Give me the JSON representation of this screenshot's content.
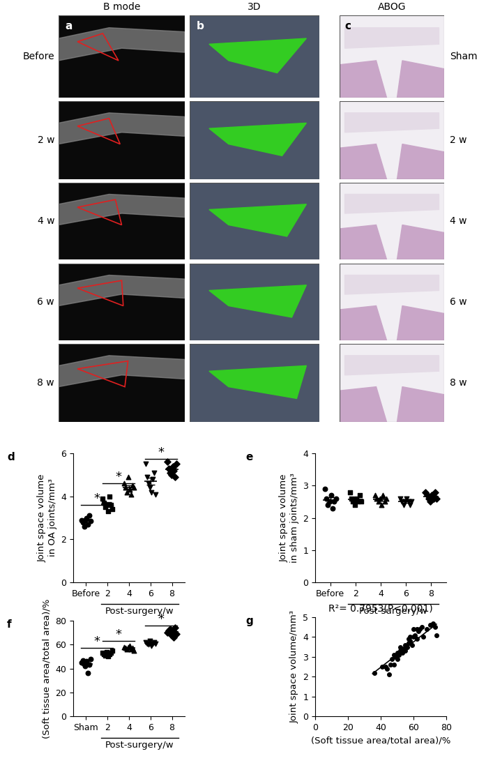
{
  "image_panels": {
    "column_titles": [
      "B mode",
      "3D",
      "ABOG"
    ],
    "row_labels": [
      "Before",
      "2 w",
      "4 w",
      "6 w",
      "8 w"
    ],
    "right_labels": [
      "Sham",
      "2 w",
      "4 w",
      "6 w",
      "8 w"
    ],
    "panel_letters": [
      "a",
      "b",
      "c"
    ]
  },
  "chart_data": [
    {
      "type": "strip",
      "panel": "d",
      "color": "#000000",
      "categories": [
        "Before",
        "2",
        "4",
        "6",
        "8"
      ],
      "y_label": "Joint space volume\nin OA joints/mm³",
      "group_label": {
        "text": "Post-surgery/w",
        "from": "2",
        "to": "8"
      },
      "ylim": [
        0,
        6
      ],
      "yticks": [
        0,
        2,
        4,
        6
      ],
      "groups": [
        {
          "category": "Before",
          "marker": "circle",
          "values": [
            2.9,
            2.8,
            2.6,
            2.9,
            3.0,
            2.7,
            3.1,
            2.85
          ],
          "mean": 2.86,
          "sem": 0.06
        },
        {
          "category": "2",
          "marker": "square",
          "values": [
            3.9,
            3.7,
            3.5,
            3.6,
            3.3,
            4.0,
            3.6,
            3.4
          ],
          "mean": 3.63,
          "sem": 0.09
        },
        {
          "category": "4",
          "marker": "triangle_up",
          "values": [
            4.6,
            4.4,
            4.2,
            4.9,
            4.3,
            4.1,
            4.5,
            4.4
          ],
          "mean": 4.42,
          "sem": 0.09
        },
        {
          "category": "6",
          "marker": "triangle_down",
          "values": [
            5.5,
            4.9,
            4.6,
            4.4,
            4.2,
            4.8,
            5.1,
            4.1
          ],
          "mean": 4.7,
          "sem": 0.17
        },
        {
          "category": "8",
          "marker": "diamond",
          "values": [
            5.6,
            5.3,
            5.1,
            5.0,
            5.4,
            5.2,
            4.9,
            5.5
          ],
          "mean": 5.25,
          "sem": 0.08
        }
      ],
      "significance": [
        {
          "from": "Before",
          "to": "2",
          "y": 3.6,
          "label": "*"
        },
        {
          "from": "2",
          "to": "4",
          "y": 4.6,
          "label": "*"
        },
        {
          "from": "6",
          "to": "8",
          "y": 5.75,
          "label": "*"
        }
      ]
    },
    {
      "type": "strip",
      "panel": "e",
      "color": "#000000",
      "categories": [
        "Before",
        "2",
        "4",
        "6",
        "8"
      ],
      "y_label": "Joint space volume\nin sham joints/mm³",
      "group_label": {
        "text": "Post-surgery/w",
        "from": "2",
        "to": "8"
      },
      "ylim": [
        0,
        4
      ],
      "yticks": [
        0,
        1,
        2,
        3,
        4
      ],
      "groups": [
        {
          "category": "Before",
          "marker": "circle",
          "values": [
            2.9,
            2.6,
            2.4,
            2.5,
            2.7,
            2.3,
            2.5,
            2.6
          ],
          "mean": 2.56,
          "sem": 0.07
        },
        {
          "category": "2",
          "marker": "square",
          "values": [
            2.8,
            2.6,
            2.5,
            2.4,
            2.6,
            2.5,
            2.7,
            2.5
          ],
          "mean": 2.58,
          "sem": 0.05
        },
        {
          "category": "4",
          "marker": "triangle_up",
          "values": [
            2.7,
            2.6,
            2.5,
            2.6,
            2.4,
            2.7,
            2.5,
            2.6
          ],
          "mean": 2.58,
          "sem": 0.04
        },
        {
          "category": "6",
          "marker": "triangle_down",
          "values": [
            2.6,
            2.5,
            2.4,
            2.5,
            2.6,
            2.5,
            2.4,
            2.5
          ],
          "mean": 2.5,
          "sem": 0.03
        },
        {
          "category": "8",
          "marker": "diamond",
          "values": [
            2.8,
            2.7,
            2.6,
            2.5,
            2.7,
            2.6,
            2.8,
            2.6
          ],
          "mean": 2.66,
          "sem": 0.04
        }
      ],
      "significance": []
    },
    {
      "type": "strip",
      "panel": "f",
      "color": "#000000",
      "categories": [
        "Sham",
        "2",
        "4",
        "6",
        "8"
      ],
      "y_label": "(Soft tissue area/total area)/%",
      "group_label": {
        "text": "Post-surgery/w",
        "from": "2",
        "to": "8"
      },
      "ylim": [
        0,
        80
      ],
      "yticks": [
        0,
        20,
        40,
        60,
        80
      ],
      "groups": [
        {
          "category": "Sham",
          "marker": "circle",
          "values": [
            45,
            47,
            44,
            42,
            46,
            36,
            43,
            48
          ],
          "mean": 43.9,
          "sem": 1.3
        },
        {
          "category": "2",
          "marker": "square",
          "values": [
            53,
            52,
            51,
            54,
            50,
            52,
            53,
            55
          ],
          "mean": 52.5,
          "sem": 0.6
        },
        {
          "category": "4",
          "marker": "triangle_up",
          "values": [
            58,
            57,
            56,
            58,
            59,
            56,
            57,
            55
          ],
          "mean": 57.0,
          "sem": 0.45
        },
        {
          "category": "6",
          "marker": "triangle_down",
          "values": [
            62,
            61,
            60,
            63,
            59,
            61,
            62,
            61
          ],
          "mean": 61.1,
          "sem": 0.4
        },
        {
          "category": "8",
          "marker": "diamond",
          "values": [
            70,
            72,
            73,
            68,
            71,
            66,
            74,
            69
          ],
          "mean": 70.4,
          "sem": 0.9
        }
      ],
      "significance": [
        {
          "from": "Sham",
          "to": "2",
          "y": 57,
          "label": "*"
        },
        {
          "from": "2",
          "to": "4",
          "y": 63,
          "label": "*"
        },
        {
          "from": "6",
          "to": "8",
          "y": 76,
          "label": "*"
        }
      ]
    },
    {
      "type": "scatter",
      "panel": "g",
      "color": "#000000",
      "title": "R²= 0.7953(P<0.001)",
      "x_label": "(Soft tissue area/total area)/%",
      "y_label": "Joint space volume/mm³",
      "xlim": [
        0,
        80
      ],
      "xticks": [
        0,
        20,
        40,
        60,
        80
      ],
      "ylim": [
        0,
        5
      ],
      "yticks": [
        0,
        1,
        2,
        3,
        4,
        5
      ],
      "x": [
        36,
        41,
        43,
        44,
        45,
        46,
        47,
        48,
        48,
        49,
        50,
        50,
        51,
        52,
        52,
        53,
        54,
        55,
        55,
        56,
        57,
        57,
        58,
        58,
        59,
        60,
        60,
        61,
        62,
        62,
        63,
        64,
        65,
        66,
        68,
        70,
        71,
        72,
        73,
        74
      ],
      "values": [
        2.2,
        2.5,
        2.5,
        2.4,
        2.1,
        2.6,
        2.9,
        3.1,
        2.6,
        3.0,
        3.2,
        2.9,
        3.1,
        3.3,
        3.5,
        3.2,
        3.4,
        3.6,
        3.3,
        3.5,
        3.7,
        3.9,
        3.8,
        4.0,
        3.6,
        4.0,
        4.4,
        4.1,
        3.9,
        4.4,
        4.3,
        4.4,
        4.5,
        4.0,
        4.4,
        4.6,
        4.6,
        4.7,
        4.5,
        4.1
      ],
      "fit_line": {
        "x": [
          35,
          74
        ],
        "y": [
          2.15,
          4.65
        ]
      }
    }
  ]
}
